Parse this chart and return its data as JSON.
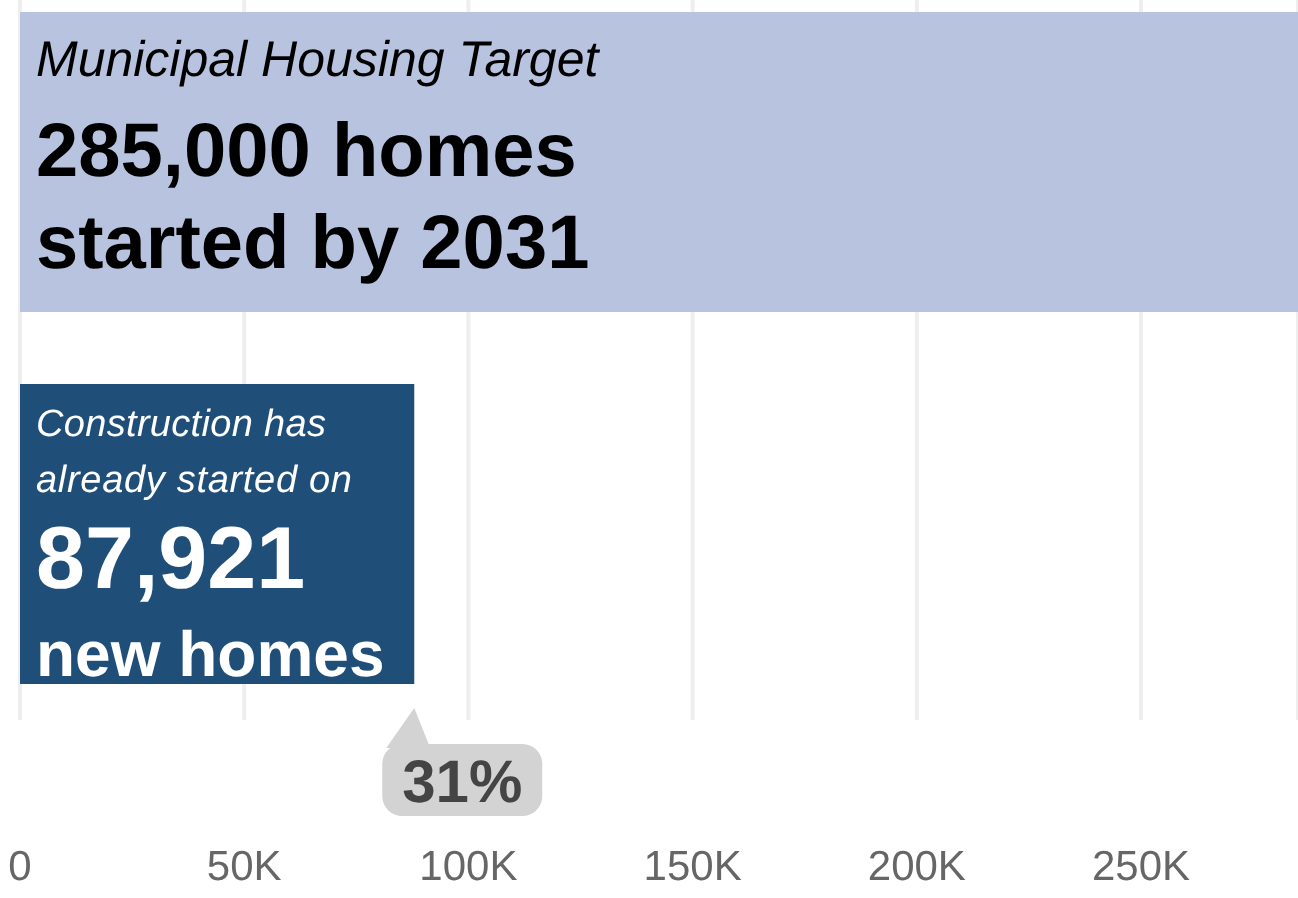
{
  "chart_data": {
    "type": "bar",
    "orientation": "horizontal",
    "categories": [
      null,
      null
    ],
    "values": [
      285000,
      87921
    ],
    "colors": [
      "#b7c3df",
      "#1f4e79"
    ],
    "value_labels": [
      "285,000",
      "87,921"
    ],
    "annotations": [
      "Municipal Housing Target",
      "homes",
      "started by 2031",
      "Construction has",
      "already started on",
      "new homes",
      "31%"
    ],
    "xlim": [
      0,
      285000
    ],
    "xticks": [
      0,
      {
        "value": 50000,
        "label": "50K"
      },
      {
        "value": 100000,
        "label": "100K"
      },
      {
        "value": 150000,
        "label": "150K"
      },
      {
        "value": 200000,
        "label": "200K"
      },
      {
        "value": 250000,
        "label": "250K"
      }
    ],
    "grid": "x"
  }
}
